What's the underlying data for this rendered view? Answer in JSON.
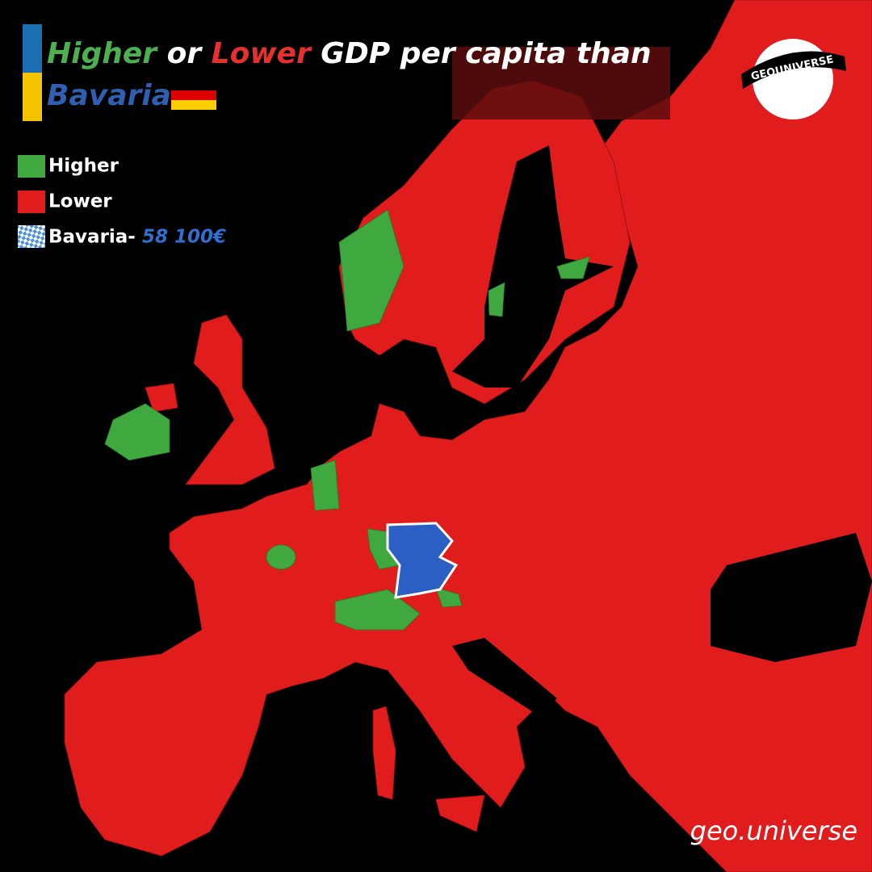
{
  "title": {
    "higher": "Higher",
    "or": "or",
    "lower": "Lower",
    "rest": "GDP per capita than",
    "region": "Bavaria"
  },
  "legend": [
    {
      "label": "Higher",
      "color": "#3fa83f"
    },
    {
      "label": "Lower",
      "color": "#e01c1c"
    }
  ],
  "reference": {
    "label": "Bavaria-",
    "value": "58 100€"
  },
  "logo": "GEOUNIVERSE",
  "watermark": "geo.universe"
}
